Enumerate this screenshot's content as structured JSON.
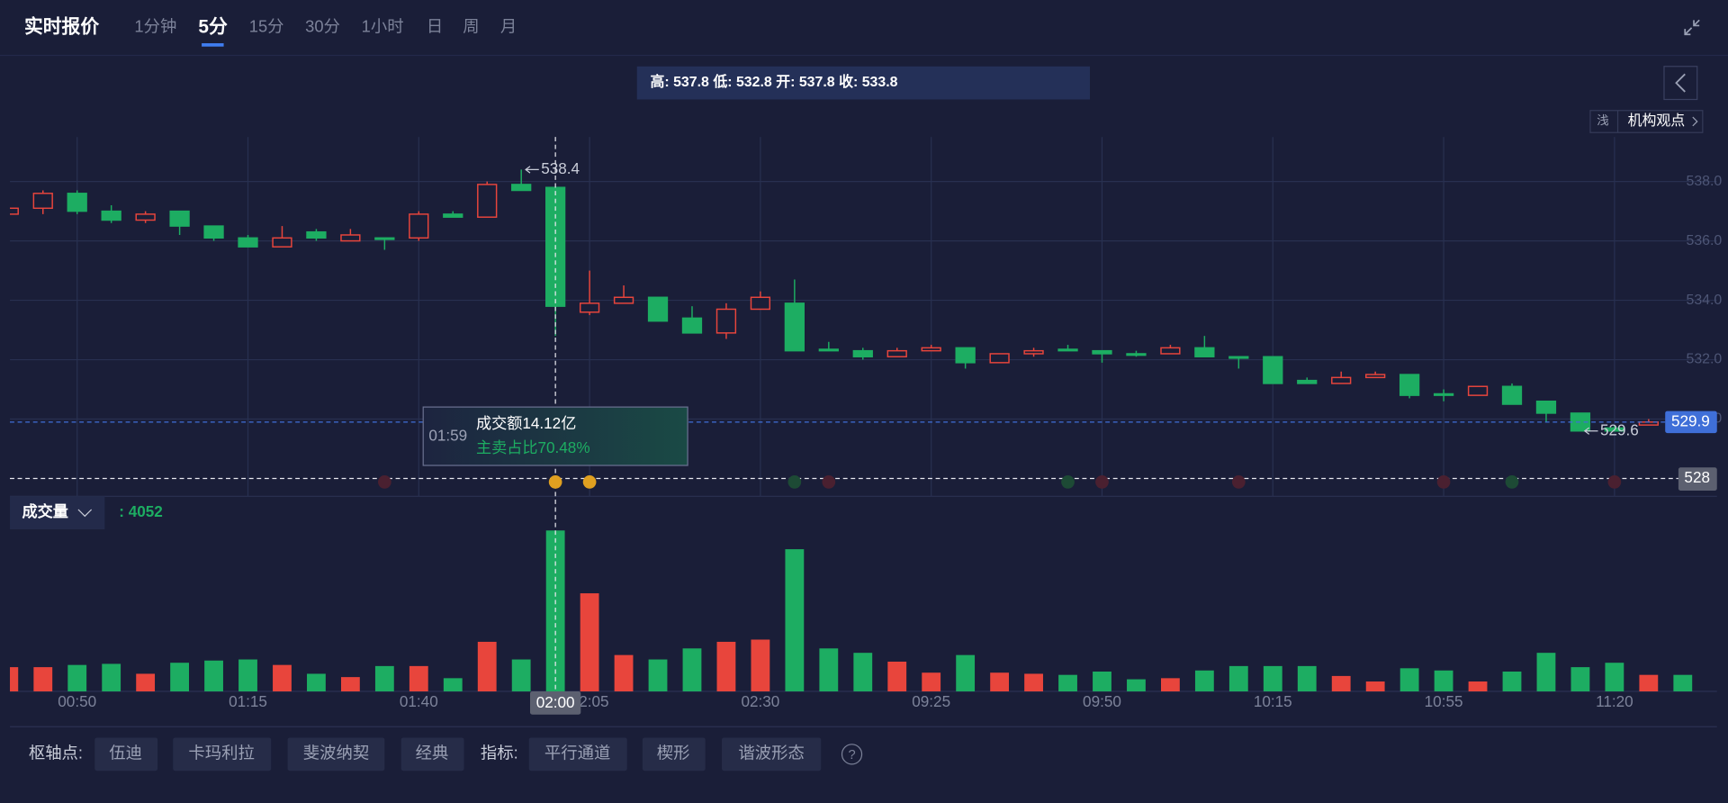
{
  "header": {
    "title": "实时报价",
    "tabs": [
      "1分钟",
      "5分",
      "15分",
      "30分",
      "1小时",
      "日",
      "周",
      "月"
    ]
  },
  "ohlc_summary": {
    "high_label": "高:",
    "high": 537.8,
    "low_label": "低:",
    "low": 532.8,
    "open_label": "开:",
    "open": 537.8,
    "close_label": "收:",
    "close": 533.8
  },
  "side_buttons": {
    "tag": "浅",
    "view": "机构观点"
  },
  "chart_data": {
    "type": "candlestick",
    "categories": [
      null,
      null,
      "00:50",
      null,
      null,
      null,
      null,
      "01:15",
      null,
      null,
      null,
      null,
      "01:40",
      null,
      null,
      null,
      null,
      "02:05",
      null,
      null,
      null,
      null,
      "02:30",
      null,
      null,
      null,
      null,
      "09:25",
      null,
      null,
      null,
      null,
      "09:50",
      null,
      null,
      null,
      null,
      "10:15",
      null,
      null,
      null,
      null,
      "10:55",
      null,
      null,
      null,
      null,
      "11:20",
      null,
      null
    ],
    "open": [
      536.9,
      537.1,
      537.6,
      537.0,
      536.7,
      537.0,
      536.5,
      536.1,
      535.8,
      536.3,
      536.0,
      536.1,
      536.1,
      536.9,
      536.8,
      537.9,
      537.8,
      533.6,
      533.9,
      534.1,
      533.4,
      532.9,
      533.7,
      533.9,
      532.35,
      532.3,
      532.1,
      532.3,
      532.4,
      531.9,
      532.2,
      532.35,
      532.3,
      532.2,
      532.2,
      532.4,
      532.1,
      532.1,
      531.3,
      531.2,
      531.4,
      531.5,
      530.85,
      530.8,
      531.1,
      530.6,
      530.2,
      529.7,
      529.8,
      529.95
    ],
    "high": [
      537.2,
      537.7,
      537.7,
      537.2,
      537.0,
      537.0,
      536.5,
      536.2,
      536.5,
      536.4,
      536.4,
      536.1,
      537.0,
      537.0,
      538.0,
      538.4,
      537.8,
      535.0,
      534.5,
      534.1,
      533.8,
      533.9,
      534.3,
      534.7,
      532.6,
      532.4,
      532.4,
      532.5,
      532.4,
      532.2,
      532.4,
      532.5,
      532.3,
      532.3,
      532.5,
      532.8,
      532.1,
      532.1,
      531.4,
      531.6,
      531.6,
      531.5,
      531.0,
      531.1,
      531.2,
      530.6,
      530.2,
      529.8,
      530.0,
      530.0
    ],
    "low": [
      536.8,
      536.9,
      536.9,
      536.6,
      536.6,
      536.2,
      536.0,
      535.8,
      535.8,
      536.0,
      536.0,
      535.7,
      536.0,
      536.8,
      536.8,
      537.7,
      532.8,
      533.5,
      533.9,
      533.3,
      532.9,
      532.7,
      533.7,
      532.3,
      532.3,
      532.0,
      532.1,
      532.3,
      531.7,
      531.9,
      532.1,
      532.3,
      531.9,
      532.1,
      532.2,
      532.1,
      531.7,
      531.2,
      531.2,
      531.2,
      531.4,
      530.7,
      530.6,
      530.8,
      530.5,
      529.9,
      529.6,
      529.6,
      529.8,
      529.8
    ],
    "close": [
      537.1,
      537.6,
      537.0,
      536.7,
      536.9,
      536.5,
      536.1,
      535.8,
      536.1,
      536.1,
      536.2,
      536.05,
      536.9,
      536.8,
      537.9,
      537.7,
      533.8,
      533.9,
      534.1,
      533.3,
      532.9,
      533.7,
      534.1,
      532.3,
      532.3,
      532.1,
      532.3,
      532.4,
      531.9,
      532.2,
      532.3,
      532.3,
      532.2,
      532.15,
      532.4,
      532.1,
      532.05,
      531.2,
      531.2,
      531.4,
      531.5,
      530.8,
      530.8,
      531.1,
      530.5,
      530.2,
      529.6,
      529.6,
      529.9,
      529.9
    ],
    "up_color": "#e8453c",
    "down_color": "#1dad62",
    "ylim": [
      527.4,
      539.5
    ],
    "yticks": [
      {
        "value": 538,
        "label": "538.0"
      },
      {
        "value": 536,
        "label": "536.0"
      },
      {
        "value": 534,
        "label": "534.0"
      },
      {
        "value": 532,
        "label": "532.0"
      },
      {
        "value": 530,
        "label": "530.0"
      }
    ],
    "grid": true,
    "last_price": 529.9,
    "crosshair": {
      "time": "02:00",
      "price": 528,
      "tooltip_time": "01:59",
      "turnover": "成交额14.12亿",
      "sell_ratio": "主卖占比70.48%"
    },
    "volume": {
      "name": "成交量",
      "current_label": ": 4052",
      "ylim": [
        0,
        150
      ],
      "values": [
        22,
        22,
        24,
        25,
        16,
        26,
        28,
        29,
        24,
        16,
        13,
        23,
        23,
        12,
        45,
        29,
        146,
        89,
        33,
        29,
        39,
        45,
        47,
        129,
        39,
        35,
        27,
        17,
        33,
        17,
        16,
        15,
        18,
        11,
        12,
        19,
        23,
        23,
        23,
        14,
        9,
        21,
        19,
        9,
        18,
        35,
        22,
        26,
        15,
        15
      ]
    }
  },
  "footer": {
    "pivot_label": "枢轴点:",
    "pivots": [
      "伍迪",
      "卡玛利拉",
      "斐波纳契",
      "经典"
    ],
    "indicator_label": "指标:",
    "indicators": [
      "平行通道",
      "楔形",
      "谐波形态"
    ],
    "help": "?"
  }
}
